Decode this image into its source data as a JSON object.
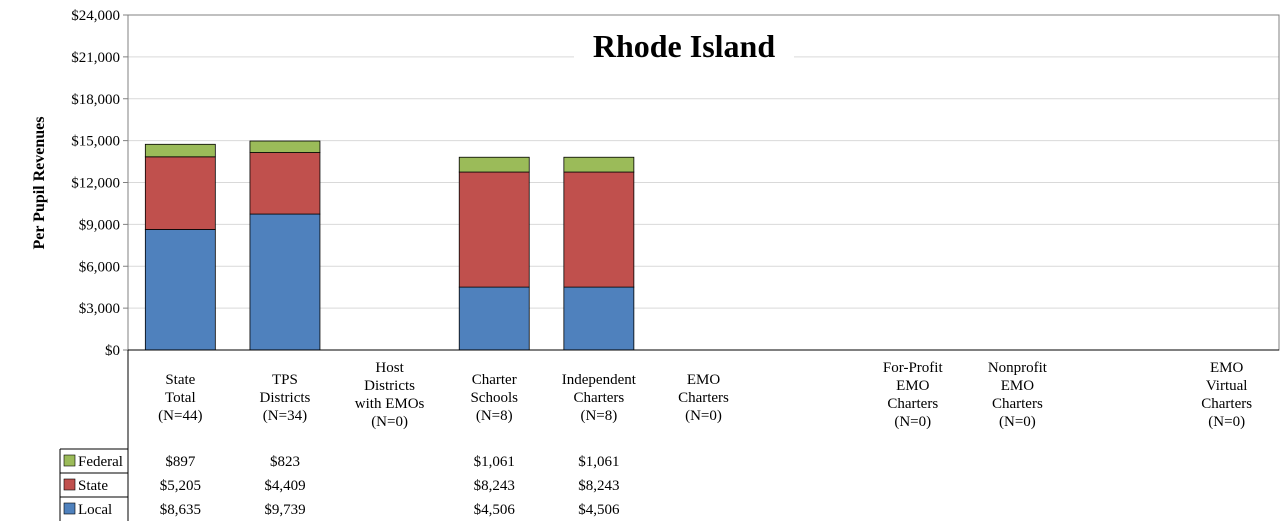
{
  "chart_data": {
    "type": "bar",
    "stacked": true,
    "title": "Rhode Island",
    "ylabel": "Per Pupil Revenues",
    "ylim": [
      0,
      24000
    ],
    "yticks": [
      0,
      3000,
      6000,
      9000,
      12000,
      15000,
      18000,
      21000,
      24000
    ],
    "ytick_labels": [
      "$0",
      "$3,000",
      "$6,000",
      "$9,000",
      "$12,000",
      "$15,000",
      "$18,000",
      "$21,000",
      "$24,000"
    ],
    "grid": true,
    "legend_position": "bottom-left (data table)",
    "categories": [
      [
        "State",
        "Total",
        "(N=44)"
      ],
      [
        "TPS",
        "Districts",
        "(N=34)"
      ],
      [
        "Host",
        "Districts",
        "with EMOs",
        "(N=0)"
      ],
      [
        "Charter",
        "Schools",
        "(N=8)"
      ],
      [
        "Independent",
        "Charters",
        "(N=8)"
      ],
      [
        "EMO",
        "Charters",
        "(N=0)"
      ],
      [
        "",
        ""
      ],
      [
        "For-Profit",
        "EMO",
        "Charters",
        "(N=0)"
      ],
      [
        "Nonprofit",
        "EMO",
        "Charters",
        "(N=0)"
      ],
      [
        "",
        ""
      ],
      [
        "EMO",
        "Virtual",
        "Charters",
        "(N=0)"
      ]
    ],
    "series": [
      {
        "name": "Federal",
        "color": "#9bbb59",
        "values": [
          897,
          823,
          null,
          1061,
          1061,
          null,
          null,
          null,
          null,
          null,
          null
        ],
        "labels": [
          "$897",
          "$823",
          "",
          "$1,061",
          "$1,061",
          "",
          "",
          "",
          "",
          "",
          ""
        ]
      },
      {
        "name": "State",
        "color": "#c0504d",
        "values": [
          5205,
          4409,
          null,
          8243,
          8243,
          null,
          null,
          null,
          null,
          null,
          null
        ],
        "labels": [
          "$5,205",
          "$4,409",
          "",
          "$8,243",
          "$8,243",
          "",
          "",
          "",
          "",
          "",
          ""
        ]
      },
      {
        "name": "Local",
        "color": "#4f81bd",
        "values": [
          8635,
          9739,
          null,
          4506,
          4506,
          null,
          null,
          null,
          null,
          null,
          null
        ],
        "labels": [
          "$8,635",
          "$9,739",
          "",
          "$4,506",
          "$4,506",
          "",
          "",
          "",
          "",
          "",
          ""
        ]
      }
    ]
  }
}
